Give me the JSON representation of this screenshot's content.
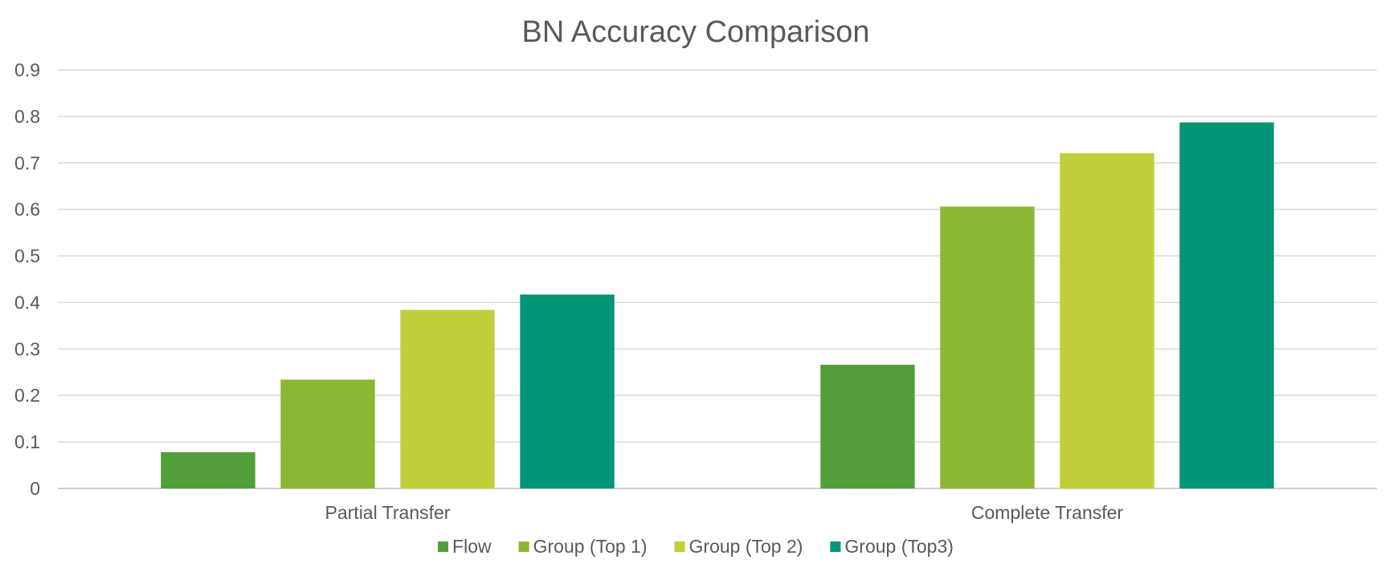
{
  "chart_data": {
    "type": "bar",
    "title": "BN Accuracy Comparison",
    "xlabel": "",
    "ylabel": "",
    "ylim": [
      0,
      0.9
    ],
    "yticks": [
      "0",
      "0.1",
      "0.2",
      "0.3",
      "0.4",
      "0.5",
      "0.6",
      "0.7",
      "0.8",
      "0.9"
    ],
    "grid": true,
    "legend_position": "bottom",
    "categories": [
      "Partial Transfer",
      "Complete Transfer"
    ],
    "series": [
      {
        "name": "Flow",
        "color": "#529e3a",
        "values": [
          0.078,
          0.266
        ]
      },
      {
        "name": "Group (Top 1)",
        "color": "#8bb734",
        "values": [
          0.234,
          0.606
        ]
      },
      {
        "name": "Group (Top 2)",
        "color": "#c1d03a",
        "values": [
          0.384,
          0.721
        ]
      },
      {
        "name": "Group (Top3)",
        "color": "#029575",
        "values": [
          0.417,
          0.787
        ]
      }
    ]
  }
}
